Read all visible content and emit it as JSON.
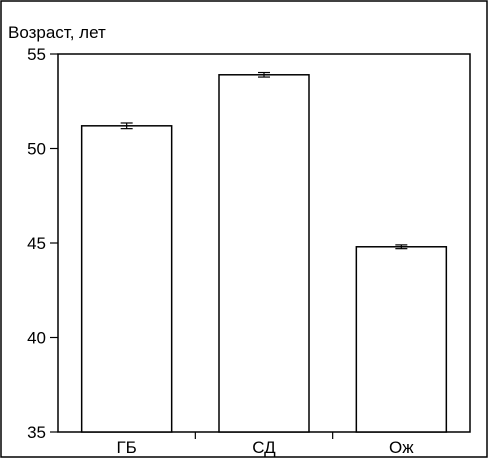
{
  "chart_data": {
    "type": "bar",
    "title": "",
    "ylabel": "Возраст, лет",
    "xlabel": "",
    "categories": [
      "ГБ",
      "СД",
      "Ож"
    ],
    "values": [
      51.2,
      53.9,
      44.8
    ],
    "error": [
      0.15,
      0.12,
      0.1
    ],
    "ylim": [
      35,
      55
    ],
    "yticks": [
      35,
      40,
      45,
      50,
      55
    ],
    "ytick_labels": [
      "35",
      "40",
      "45",
      "50",
      "55"
    ],
    "grid": false,
    "colors": {
      "bar_fill": "#ffffff",
      "stroke": "#000000",
      "background": "#ffffff"
    }
  }
}
